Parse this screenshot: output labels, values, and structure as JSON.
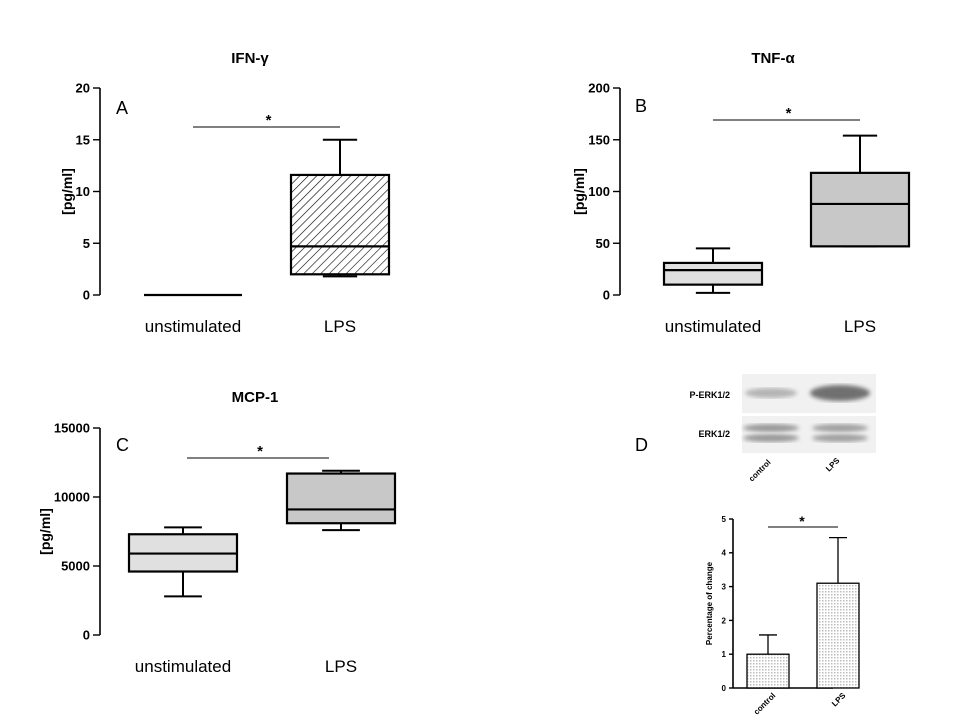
{
  "colors": {
    "axis": "#000000",
    "box_fill_light": "#e0e0e0",
    "box_fill_gray": "#c8c8c8",
    "hatch_fill": "#ffffff",
    "bar_pattern_dot": "#bdbdbd",
    "blot_bg": "#f1f1f1",
    "blot_band": "#6a6a6a"
  },
  "chart_data": [
    {
      "id": "A",
      "panel_label": "A",
      "type": "box",
      "title": "IFN-γ",
      "ylabel": "[pg/ml]",
      "ylim": [
        0,
        20
      ],
      "yticks": [
        "0",
        "5",
        "10",
        "15",
        "20"
      ],
      "categories": [
        "unstimulated",
        "LPS"
      ],
      "boxes": [
        {
          "category": "unstimulated",
          "min": 0,
          "q1": 0,
          "median": 0,
          "q3": 0,
          "max": 0,
          "fill": "none"
        },
        {
          "category": "LPS",
          "min": 1.8,
          "q1": 2,
          "median": 4.7,
          "q3": 11.6,
          "max": 15,
          "fill": "hatched"
        }
      ],
      "significance": "*"
    },
    {
      "id": "B",
      "panel_label": "B",
      "type": "box",
      "title": "TNF-α",
      "ylabel": "[pg/ml]",
      "ylim": [
        0,
        200
      ],
      "yticks": [
        "0",
        "50",
        "100",
        "150",
        "200"
      ],
      "categories": [
        "unstimulated",
        "LPS"
      ],
      "boxes": [
        {
          "category": "unstimulated",
          "min": 2,
          "q1": 10,
          "median": 24,
          "q3": 31,
          "max": 45,
          "fill": "light"
        },
        {
          "category": "LPS",
          "min": 47,
          "q1": 47,
          "median": 88,
          "q3": 118,
          "max": 154,
          "fill": "gray"
        }
      ],
      "significance": "*"
    },
    {
      "id": "C",
      "panel_label": "C",
      "type": "box",
      "title": "MCP-1",
      "ylabel": "[pg/ml]",
      "ylim": [
        0,
        15000
      ],
      "yticks": [
        "0",
        "5000",
        "10000",
        "15000"
      ],
      "categories": [
        "unstimulated",
        "LPS"
      ],
      "boxes": [
        {
          "category": "unstimulated",
          "min": 2800,
          "q1": 4600,
          "median": 5900,
          "q3": 7300,
          "max": 7800,
          "fill": "light"
        },
        {
          "category": "LPS",
          "min": 7600,
          "q1": 8100,
          "median": 9100,
          "q3": 11700,
          "max": 11900,
          "fill": "gray"
        }
      ],
      "significance": "*"
    },
    {
      "id": "D",
      "panel_label": "D",
      "type": "bar",
      "title": "",
      "ylabel": "Percentage of change",
      "ylim": [
        0,
        5
      ],
      "yticks": [
        "0",
        "1",
        "2",
        "3",
        "4",
        "5"
      ],
      "categories": [
        "control",
        "LPS"
      ],
      "values": [
        1.0,
        3.1
      ],
      "errors": [
        0.57,
        1.35
      ],
      "significance": "*"
    }
  ],
  "blot": {
    "row_labels": [
      "P-ERK1/2",
      "ERK1/2"
    ],
    "lane_labels": [
      "control",
      "LPS"
    ]
  }
}
